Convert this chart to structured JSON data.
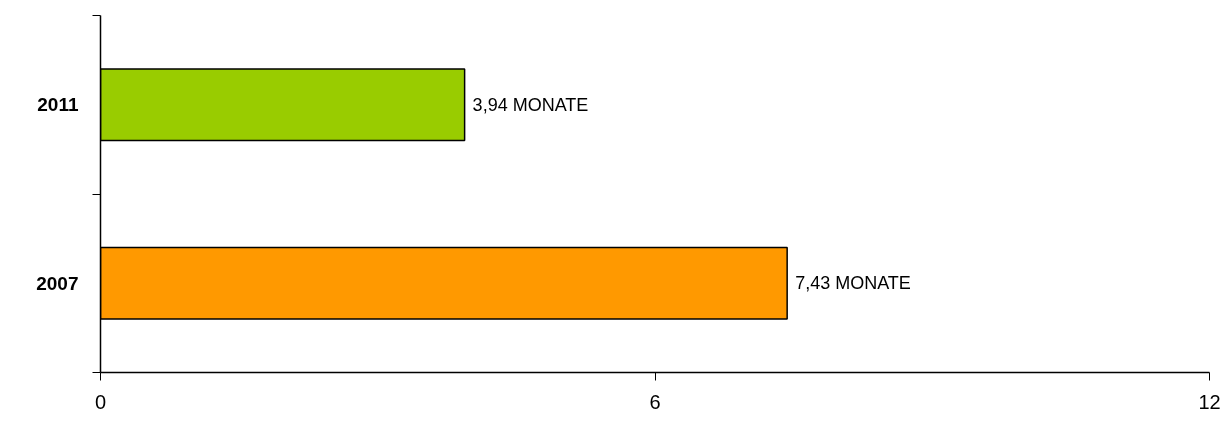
{
  "chart_data": {
    "type": "bar",
    "orientation": "horizontal",
    "categories": [
      "2011",
      "2007"
    ],
    "values": [
      3.94,
      7.43
    ],
    "colors": [
      "#99cc00",
      "#ff9900"
    ],
    "value_labels": [
      "3,94 MONATE",
      "7,43 MONATE"
    ],
    "xlim": [
      0,
      12
    ],
    "xticks": [
      0,
      6,
      12
    ],
    "grid": false
  }
}
